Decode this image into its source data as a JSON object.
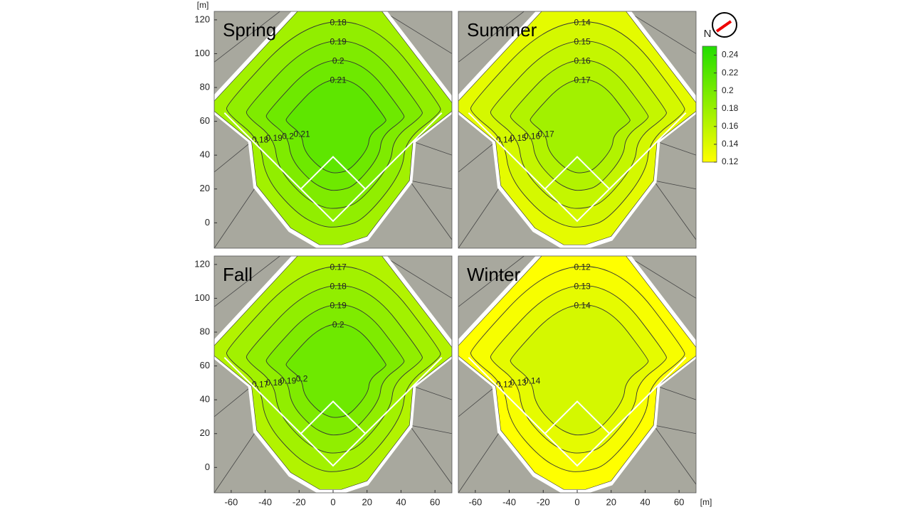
{
  "chart_data": [
    {
      "type": "contour",
      "title": "Spring",
      "levels": [
        0.18,
        0.19,
        0.2,
        0.21
      ],
      "xlim": [
        -70,
        70
      ],
      "ylim": [
        -15,
        125
      ],
      "yticks": [
        0,
        20,
        40,
        60,
        80,
        100,
        120
      ],
      "ylabel": "[m]"
    },
    {
      "type": "contour",
      "title": "Summer",
      "levels": [
        0.14,
        0.15,
        0.16,
        0.17
      ],
      "xlim": [
        -70,
        70
      ],
      "ylim": [
        -15,
        125
      ]
    },
    {
      "type": "contour",
      "title": "Fall",
      "levels": [
        0.17,
        0.18,
        0.19,
        0.2
      ],
      "xlim": [
        -70,
        70
      ],
      "ylim": [
        -15,
        125
      ],
      "yticks": [
        0,
        20,
        40,
        60,
        80,
        100,
        120
      ],
      "xticks": [
        -60,
        -40,
        -20,
        0,
        20,
        40,
        60
      ]
    },
    {
      "type": "contour",
      "title": "Winter",
      "levels": [
        0.12,
        0.13,
        0.14
      ],
      "xlim": [
        -70,
        70
      ],
      "ylim": [
        -15,
        125
      ],
      "xticks": [
        -60,
        -40,
        -20,
        0,
        20,
        40,
        60
      ],
      "xlabel": "[m]"
    }
  ],
  "colorbar": {
    "clim": [
      0.12,
      0.25
    ],
    "ticks": [
      0.12,
      0.14,
      0.16,
      0.18,
      0.2,
      0.22,
      0.24
    ],
    "colors": [
      "#ffff00",
      "#22dd00"
    ]
  },
  "compass": {
    "label": "N"
  }
}
